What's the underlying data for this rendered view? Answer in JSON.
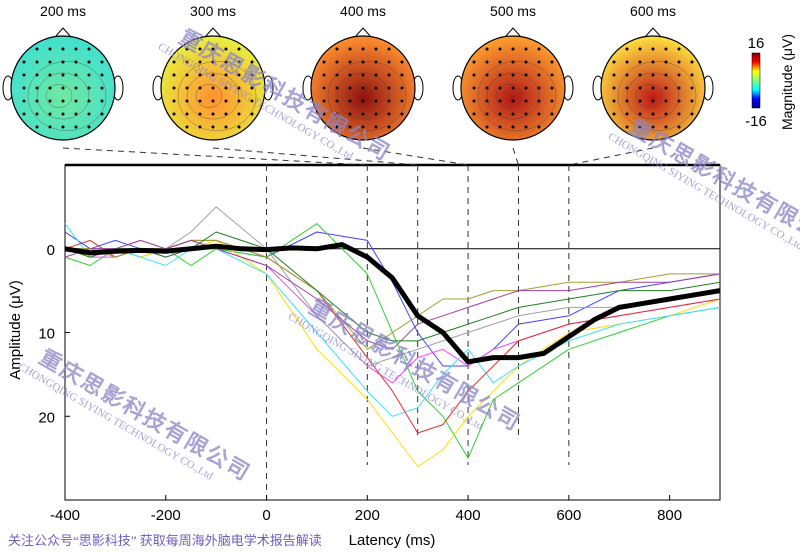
{
  "chart_data": {
    "type": "line",
    "xlabel": "Latency (ms)",
    "ylabel": "Amplitude (μV)",
    "xlim": [
      -400,
      900
    ],
    "ylim": [
      -10,
      30
    ],
    "y_reversed": true,
    "xticks": [
      -400,
      -200,
      0,
      200,
      400,
      600,
      800
    ],
    "yticks": [
      0,
      10,
      20
    ],
    "grid": false,
    "event_lines_ms": [
      0,
      200,
      300,
      400,
      500,
      600
    ],
    "mean": {
      "color": "#000000",
      "x": [
        -400,
        -350,
        -300,
        -250,
        -200,
        -150,
        -100,
        -50,
        0,
        50,
        100,
        150,
        200,
        250,
        300,
        350,
        400,
        450,
        500,
        550,
        600,
        650,
        700,
        750,
        800,
        850,
        900
      ],
      "y": [
        0,
        0.5,
        0.3,
        0.2,
        0.3,
        0,
        -0.3,
        0,
        0.1,
        -0.1,
        0,
        -0.5,
        1,
        3.5,
        8,
        10,
        13.5,
        13,
        13,
        12.5,
        10.5,
        8.5,
        7,
        6.5,
        6,
        5.5,
        5
      ]
    },
    "channels": [
      {
        "color": "#4040ff",
        "y": [
          -2,
          0,
          -1,
          0,
          0,
          -1,
          0,
          1,
          -2,
          -1,
          4,
          10,
          14,
          14,
          12,
          9,
          8,
          5,
          4,
          3
        ]
      },
      {
        "color": "#30d030",
        "y": [
          1,
          2,
          0,
          1,
          0,
          2,
          0,
          1,
          -3,
          3,
          10,
          17,
          20,
          25,
          18,
          16,
          12,
          10,
          8,
          7
        ]
      },
      {
        "color": "#ff40ff",
        "y": [
          0,
          1,
          1,
          0,
          1,
          0,
          0,
          2,
          8,
          14,
          16,
          13,
          12,
          14,
          12,
          11,
          9,
          8,
          7,
          6
        ]
      },
      {
        "color": "#ffe000",
        "y": [
          0,
          1,
          0,
          1,
          0,
          0,
          -1,
          3,
          12,
          18,
          22,
          26,
          24,
          20,
          17,
          14,
          10,
          9,
          8,
          6
        ]
      },
      {
        "color": "#40e0ff",
        "y": [
          -3,
          1,
          0,
          1,
          2,
          0,
          0,
          3,
          10,
          17,
          20,
          19,
          15,
          12,
          16,
          14,
          11,
          9,
          8,
          7
        ]
      },
      {
        "color": "#e03030",
        "y": [
          0,
          -1,
          1,
          0,
          0,
          -1,
          -1,
          1,
          5,
          13,
          17,
          22,
          21,
          17,
          14,
          11,
          9,
          8,
          7,
          6
        ]
      },
      {
        "color": "#a0a0a0",
        "y": [
          0,
          0,
          0,
          -1,
          0,
          -2,
          -5,
          0,
          8,
          14,
          13,
          12,
          11,
          10,
          9,
          8,
          7,
          7,
          6,
          5
        ]
      },
      {
        "color": "#a0a030",
        "y": [
          0,
          0,
          1,
          0,
          0,
          -1,
          -1,
          1,
          5,
          12,
          10,
          8,
          6,
          6,
          5,
          5,
          4,
          4,
          3,
          3
        ]
      },
      {
        "color": "#a040a0",
        "y": [
          1,
          0,
          0,
          -1,
          0,
          -1,
          0,
          2,
          6,
          11,
          12,
          9,
          8,
          7,
          6,
          5,
          5,
          4,
          4,
          3
        ]
      },
      {
        "color": "#208020",
        "y": [
          0,
          1,
          0,
          0,
          1,
          0,
          -2,
          0,
          5,
          10,
          11,
          11,
          10,
          9,
          8,
          7,
          6,
          5,
          5,
          4
        ]
      }
    ],
    "channel_x": [
      -400,
      -350,
      -300,
      -250,
      -200,
      -150,
      -100,
      0,
      100,
      200,
      250,
      300,
      350,
      400,
      450,
      500,
      600,
      700,
      800,
      900
    ],
    "topomaps": [
      {
        "label": "200 ms",
        "latency": 200,
        "center": "#70e8a0",
        "edge": "#40e0d0"
      },
      {
        "label": "300 ms",
        "latency": 300,
        "center": "#ff9030",
        "edge": "#e8f040"
      },
      {
        "label": "400 ms",
        "latency": 400,
        "center": "#901010",
        "edge": "#ff9030"
      },
      {
        "label": "500 ms",
        "latency": 500,
        "center": "#b01818",
        "edge": "#ffa030"
      },
      {
        "label": "600 ms",
        "latency": 600,
        "center": "#c01818",
        "edge": "#ffe040"
      }
    ],
    "colorbar": {
      "max_label": "16",
      "min_label": "-16",
      "label": "Magnitude (μV)",
      "colormap": "jet"
    }
  },
  "watermark": {
    "cn": "重庆思影科技有限公司",
    "en": "CHONGQING SIYING TECHNOLOGY CO.,Ltd"
  },
  "footer": "关注公众号“思影科技” 获取每周海外脑电学术报告解读"
}
